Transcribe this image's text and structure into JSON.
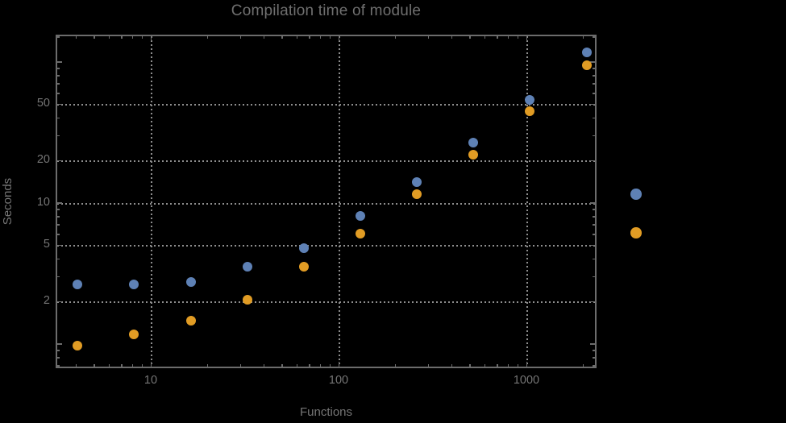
{
  "title": "Compilation time of module",
  "axes": {
    "x_label": "Functions",
    "y_label": "Seconds"
  },
  "colors": {
    "background": "#000000",
    "frame": "#6c6c6c",
    "grid": "#8e8e8e",
    "text": "#757575",
    "series1": "#5E81B5",
    "series2": "#E19C24"
  },
  "legend": {
    "note": "two unlabeled color markers right of plot",
    "markers": [
      {
        "name": "series-1-marker",
        "color": "#5E81B5"
      },
      {
        "name": "series-2-marker",
        "color": "#E19C24"
      }
    ]
  },
  "chart_data": {
    "type": "scatter",
    "title": "Compilation time of module",
    "xlabel": "Functions",
    "ylabel": "Seconds",
    "x_scale": "log",
    "y_scale": "log",
    "xlim": [
      3.1,
      2360
    ],
    "ylim": [
      0.67,
      156
    ],
    "grid": "dotted gray gridlines at labeled ticks",
    "legend_position": "right-of-plot, markers only (labels not visible)",
    "x": [
      4,
      8,
      16,
      32,
      64,
      128,
      256,
      512,
      1024,
      2048
    ],
    "series": [
      {
        "name": "series-1-blue",
        "color": "#5E81B5",
        "values": [
          2.7,
          2.7,
          2.8,
          3.6,
          4.9,
          8.3,
          14.4,
          27.4,
          55,
          119
        ]
      },
      {
        "name": "series-2-orange",
        "color": "#E19C24",
        "values": [
          1.0,
          1.2,
          1.5,
          2.1,
          3.6,
          6.2,
          11.8,
          22.5,
          46,
          97
        ]
      }
    ],
    "x_ticks": [
      {
        "value": 10,
        "label": "10"
      },
      {
        "value": 100,
        "label": "100"
      },
      {
        "value": 1000,
        "label": "1000"
      }
    ],
    "y_ticks": [
      {
        "value": 2,
        "label": "2"
      },
      {
        "value": 5,
        "label": "5"
      },
      {
        "value": 10,
        "label": "10"
      },
      {
        "value": 20,
        "label": "20"
      },
      {
        "value": 50,
        "label": "50"
      }
    ],
    "x_minor_ticks": [
      4,
      5,
      6,
      7,
      8,
      9,
      20,
      30,
      40,
      50,
      60,
      70,
      80,
      90,
      200,
      300,
      400,
      500,
      600,
      700,
      800,
      900,
      2000
    ],
    "y_minor_ticks": [
      0.7,
      0.8,
      0.9,
      3,
      4,
      6,
      7,
      8,
      9,
      30,
      40,
      60,
      70,
      80,
      90,
      150
    ],
    "y_unlabeled_major_ticks": [
      1,
      100
    ]
  }
}
